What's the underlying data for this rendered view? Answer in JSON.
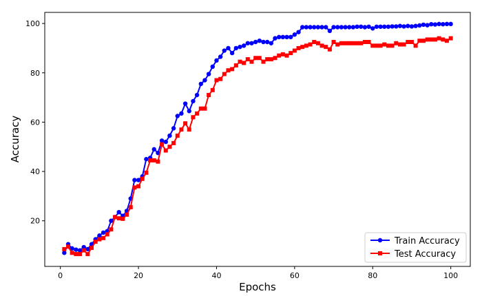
{
  "chart_data": {
    "type": "line",
    "title": "",
    "xlabel": "Epochs",
    "ylabel": "Accuracy",
    "xlim": [
      -4,
      105
    ],
    "ylim": [
      1.5,
      104.5
    ],
    "xticks": [
      0,
      20,
      40,
      60,
      80,
      100
    ],
    "yticks": [
      20,
      40,
      60,
      80,
      100
    ],
    "grid": false,
    "legend_position": "lower right",
    "x": [
      1,
      2,
      3,
      4,
      5,
      6,
      7,
      8,
      9,
      10,
      11,
      12,
      13,
      14,
      15,
      16,
      17,
      18,
      19,
      20,
      21,
      22,
      23,
      24,
      25,
      26,
      27,
      28,
      29,
      30,
      31,
      32,
      33,
      34,
      35,
      36,
      37,
      38,
      39,
      40,
      41,
      42,
      43,
      44,
      45,
      46,
      47,
      48,
      49,
      50,
      51,
      52,
      53,
      54,
      55,
      56,
      57,
      58,
      59,
      60,
      61,
      62,
      63,
      64,
      65,
      66,
      67,
      68,
      69,
      70,
      71,
      72,
      73,
      74,
      75,
      76,
      77,
      78,
      79,
      80,
      81,
      82,
      83,
      84,
      85,
      86,
      87,
      88,
      89,
      90,
      91,
      92,
      93,
      94,
      95,
      96,
      97,
      98,
      99,
      100
    ],
    "series": [
      {
        "name": "Train Accuracy",
        "color": "#0000ff",
        "marker": "circle",
        "values": [
          7.0,
          10.5,
          8.8,
          8.3,
          8.0,
          9.3,
          8.5,
          10.5,
          12.5,
          14.0,
          15.2,
          15.8,
          20.0,
          21.5,
          23.5,
          22.0,
          24.0,
          29.0,
          36.5,
          36.5,
          38.0,
          45.0,
          45.5,
          49.0,
          47.5,
          52.5,
          52.0,
          54.5,
          57.5,
          62.5,
          63.5,
          67.5,
          64.5,
          68.5,
          71.0,
          75.5,
          77.0,
          79.5,
          82.5,
          85.0,
          86.5,
          89.0,
          90.0,
          88.0,
          90.0,
          90.5,
          91.0,
          92.0,
          92.0,
          92.5,
          93.0,
          92.5,
          92.5,
          92.0,
          94.0,
          94.5,
          94.5,
          94.5,
          94.5,
          95.5,
          96.5,
          98.5,
          98.5,
          98.5,
          98.5,
          98.5,
          98.5,
          98.5,
          97.0,
          98.5,
          98.5,
          98.5,
          98.5,
          98.5,
          98.5,
          98.7,
          98.7,
          98.5,
          98.7,
          98.0,
          98.7,
          98.7,
          98.7,
          98.7,
          98.8,
          98.8,
          99.0,
          98.8,
          99.0,
          98.8,
          99.0,
          99.2,
          99.5,
          99.3,
          99.7,
          99.6,
          99.8,
          99.7,
          99.8,
          99.8
        ]
      },
      {
        "name": "Test Accuracy",
        "color": "#ff0000",
        "marker": "square",
        "values": [
          8.5,
          9.5,
          7.0,
          6.5,
          6.5,
          8.0,
          6.5,
          9.0,
          11.5,
          12.5,
          13.0,
          14.5,
          16.5,
          21.5,
          21.0,
          20.8,
          22.5,
          25.5,
          33.5,
          34.0,
          37.0,
          39.5,
          44.5,
          44.5,
          44.0,
          51.0,
          48.5,
          50.0,
          51.5,
          54.5,
          57.0,
          59.5,
          57.0,
          62.0,
          63.5,
          65.5,
          65.5,
          71.0,
          73.0,
          77.0,
          77.5,
          79.5,
          81.0,
          81.5,
          83.0,
          84.5,
          84.0,
          85.5,
          84.5,
          86.0,
          86.0,
          84.5,
          85.5,
          85.5,
          86.0,
          87.0,
          87.5,
          87.0,
          88.0,
          89.0,
          90.0,
          90.5,
          91.0,
          91.5,
          92.5,
          92.0,
          91.0,
          90.5,
          89.5,
          92.5,
          91.5,
          92.0,
          92.0,
          92.0,
          92.0,
          92.0,
          92.0,
          92.5,
          92.5,
          91.0,
          91.0,
          91.0,
          91.5,
          91.0,
          91.0,
          92.0,
          91.5,
          91.5,
          92.5,
          92.5,
          91.0,
          93.0,
          93.0,
          93.5,
          93.5,
          93.5,
          94.0,
          93.5,
          93.0,
          94.0
        ]
      }
    ]
  }
}
